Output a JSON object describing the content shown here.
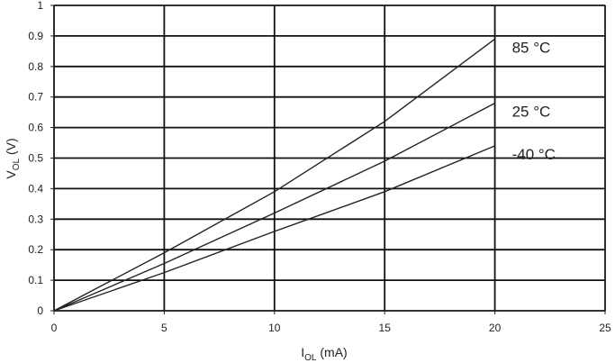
{
  "chart_data": {
    "type": "line",
    "title": "",
    "xlabel": {
      "main": "I",
      "sub": "OL",
      "unit": " (mA)"
    },
    "ylabel": {
      "main": "V",
      "sub": "OL",
      "unit": " (V)"
    },
    "xlim": [
      0,
      25
    ],
    "ylim": [
      0,
      1
    ],
    "xticks": [
      "0",
      "5",
      "10",
      "15",
      "20",
      "25"
    ],
    "yticks": [
      "0",
      "0.1",
      "0.2",
      "0.3",
      "0.4",
      "0.5",
      "0.6",
      "0.7",
      "0.8",
      "0.9",
      "1"
    ],
    "grid": true,
    "series": [
      {
        "name": "85 °C",
        "x": [
          0,
          5,
          10,
          15,
          20
        ],
        "y": [
          0,
          0.19,
          0.39,
          0.62,
          0.89
        ],
        "color": "#222222"
      },
      {
        "name": "25 °C",
        "x": [
          0,
          5,
          10,
          15,
          20
        ],
        "y": [
          0,
          0.155,
          0.32,
          0.49,
          0.68
        ],
        "color": "#222222"
      },
      {
        "name": "-40 °C",
        "x": [
          0,
          5,
          10,
          15,
          20
        ],
        "y": [
          0,
          0.125,
          0.26,
          0.39,
          0.54
        ],
        "color": "#222222"
      }
    ]
  }
}
